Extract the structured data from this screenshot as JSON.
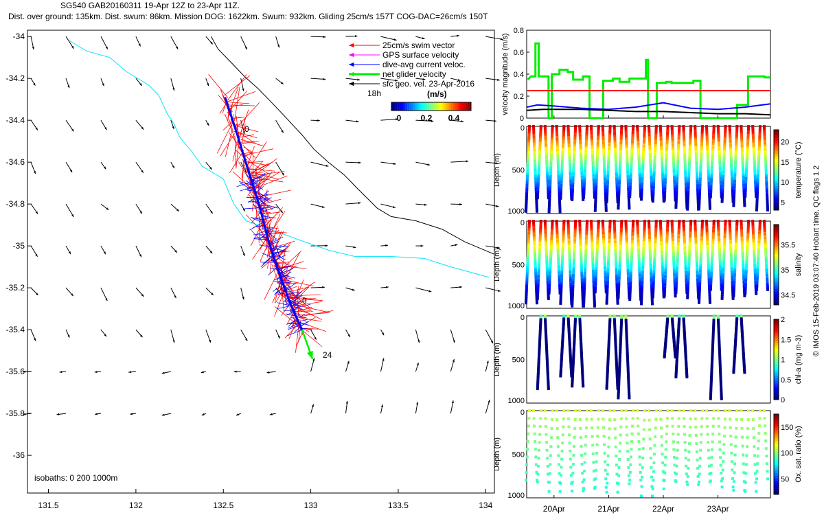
{
  "header": {
    "line1": "SG540 GAB20160311 19-Apr 12Z to 23-Apr 11Z.",
    "line2": "Dist. over ground: 135km. Dist. swum: 86km. Mission DOG: 1622km. Swum: 932km. Gliding 25cm/s 157T COG-DAC=26cm/s 150T"
  },
  "footer_note": "© IMOS 15-Feb-2019 03:07:40 Hobart time. QC flags 1  2",
  "colors": {
    "swim": "#ff0000",
    "gps": "#ff00ff",
    "dac": "#0000ff",
    "net": "#00ee00",
    "geo": "#000000",
    "isobath_0": "#00e5ff",
    "isobath_200": "#000000",
    "threshold": "#ff0000"
  },
  "chart_data": [
    {
      "type": "scatter",
      "panel": "map",
      "x_ticks": [
        "131.5",
        "132",
        "132.5",
        "133",
        "133.5",
        "134"
      ],
      "y_ticks": [
        "-34",
        "-34.2",
        "-34.4",
        "-34.6",
        "-34.8",
        "-35",
        "-35.2",
        "-35.4",
        "-35.6",
        "-35.8",
        "-36"
      ],
      "xlim": [
        131.38,
        134.05
      ],
      "ylim": [
        -36.18,
        -33.97
      ],
      "legend": [
        {
          "label": "25cm/s swim vector",
          "color": "#ff0000"
        },
        {
          "label": "GPS surface velocity",
          "color": "#ff00ff"
        },
        {
          "label": "dive-avg current veloc.",
          "color": "#0000ff"
        },
        {
          "label": "net glider velocity",
          "color": "#00ee00"
        },
        {
          "label": "sfc geo. vel. 23-Apr-2016",
          "color": "#000000"
        }
      ],
      "legend_extra": "18h",
      "colorbar": {
        "label": "(m/s)",
        "ticks": [
          "0",
          "0.2",
          "0.4"
        ],
        "range": [
          0,
          0.5
        ]
      },
      "isobaths_label": "isobaths: 0   200  1000m",
      "track_labels": [
        "0",
        "0",
        "24"
      ],
      "track": [
        [
          132.51,
          -34.29
        ],
        [
          132.58,
          -34.47
        ],
        [
          132.65,
          -34.66
        ],
        [
          132.7,
          -34.79
        ],
        [
          132.76,
          -34.98
        ],
        [
          132.82,
          -35.13
        ],
        [
          132.88,
          -35.27
        ],
        [
          132.95,
          -35.4
        ]
      ],
      "net_velocity_end": [
        133.01,
        -35.54
      ]
    },
    {
      "type": "line",
      "panel": "velocity",
      "ylabel": "velocity magnitude (m/s)",
      "ylim": [
        0,
        0.8
      ],
      "y_ticks": [
        "0",
        "0.2",
        "0.4",
        "0.6",
        "0.8"
      ],
      "x_ticks": [
        "20Apr",
        "21Apr",
        "22Apr",
        "23Apr"
      ],
      "x_tick_days": [
        20,
        21,
        22,
        23
      ],
      "xlim": [
        19.5,
        23.96
      ],
      "series": [
        {
          "color": "#00ee00",
          "x": [
            19.52,
            19.58,
            19.62,
            19.62,
            19.66,
            19.66,
            19.72,
            19.72,
            19.9,
            19.9,
            19.96,
            19.96,
            20.1,
            20.1,
            20.25,
            20.25,
            20.35,
            20.35,
            20.53,
            20.53,
            20.65,
            20.65,
            20.9,
            20.9,
            21.08,
            21.08,
            21.2,
            21.2,
            21.38,
            21.38,
            21.55,
            21.55,
            21.68,
            21.68,
            21.72,
            21.72,
            21.88,
            21.88,
            22.05,
            22.05,
            22.15,
            22.15,
            22.55,
            22.55,
            22.68,
            22.68,
            23.35,
            23.35,
            23.55,
            23.55,
            23.85,
            23.85,
            23.96
          ],
          "y": [
            0.35,
            0.38,
            0.38,
            0.38,
            0.38,
            0.68,
            0.68,
            0.38,
            0.38,
            0.0,
            0.0,
            0.4,
            0.4,
            0.44,
            0.44,
            0.42,
            0.42,
            0.35,
            0.35,
            0.38,
            0.38,
            0.0,
            0.0,
            0.34,
            0.34,
            0.36,
            0.36,
            0.33,
            0.33,
            0.36,
            0.36,
            0.36,
            0.36,
            0.53,
            0.53,
            0.0,
            0.0,
            0.32,
            0.32,
            0.33,
            0.33,
            0.32,
            0.32,
            0.34,
            0.34,
            0.0,
            0.0,
            0.12,
            0.12,
            0.38,
            0.38,
            0.37,
            0.37
          ]
        },
        {
          "color": "#ff0000",
          "x": [
            19.5,
            23.96
          ],
          "y": [
            0.25,
            0.25
          ]
        },
        {
          "color": "#0000ff",
          "x": [
            19.5,
            19.7,
            20.0,
            20.5,
            21.0,
            21.5,
            22.0,
            22.5,
            23.0,
            23.5,
            23.96
          ],
          "y": [
            0.1,
            0.12,
            0.11,
            0.09,
            0.08,
            0.1,
            0.14,
            0.09,
            0.08,
            0.1,
            0.13
          ]
        },
        {
          "color": "#000000",
          "x": [
            19.5,
            19.8,
            20.5,
            21.0,
            21.5,
            22.0,
            22.5,
            23.0,
            23.5,
            23.96
          ],
          "y": [
            0.07,
            0.08,
            0.08,
            0.07,
            0.06,
            0.06,
            0.05,
            0.04,
            0.04,
            0.03
          ]
        }
      ]
    },
    {
      "type": "scatter",
      "panel": "temperature",
      "ylabel": "Depth (m)",
      "cbar_label": "temperature (°C)",
      "cbar_ticks": [
        "20",
        "15",
        "10",
        "5"
      ],
      "cbar_range": [
        3,
        23
      ],
      "depth_ticks": [
        "0",
        "500",
        "1000"
      ],
      "dives": 21,
      "mode": "full"
    },
    {
      "type": "scatter",
      "panel": "salinity",
      "ylabel": "Depth (m)",
      "cbar_label": "salinity",
      "cbar_ticks": [
        "35.5",
        "35",
        "34.5"
      ],
      "cbar_range": [
        34.3,
        35.9
      ],
      "depth_ticks": [
        "0",
        "500",
        "1000"
      ],
      "dives": 21,
      "mode": "full"
    },
    {
      "type": "scatter",
      "panel": "chla",
      "ylabel": "Depth (m)",
      "cbar_label": "chl-a (mg m-3)",
      "cbar_ticks": [
        "2",
        "1.5",
        "1",
        "0.5",
        "0"
      ],
      "cbar_range": [
        0,
        2
      ],
      "depth_ticks": [
        "0",
        "500",
        "1000"
      ],
      "dives": 21,
      "mode": "sparse"
    },
    {
      "type": "scatter",
      "panel": "oxygen",
      "ylabel": "Depth (m)",
      "cbar_label": "Ox. sat. ratio (%)",
      "cbar_ticks": [
        "150",
        "100",
        "50"
      ],
      "cbar_range": [
        20,
        175
      ],
      "depth_ticks": [
        "0",
        "500",
        "1000"
      ],
      "dives": 21,
      "mode": "dots"
    }
  ]
}
